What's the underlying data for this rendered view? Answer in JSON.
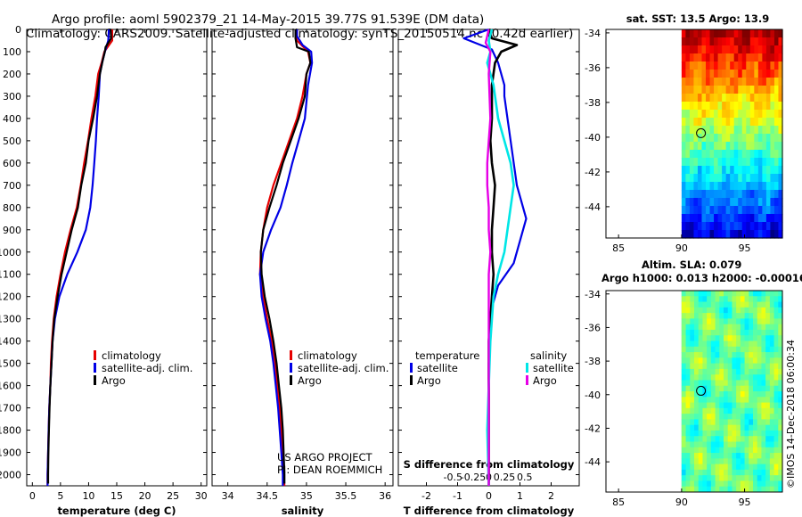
{
  "header": {
    "line1": "Argo profile: aoml 5902379_21 14-May-2015 39.77S 91.539E (DM data)",
    "line2": "Climatology: CARS2009. Satellite-adjusted climatology: synTS_20150514.nc (0.42d earlier)"
  },
  "colors": {
    "climatology": "#e60000",
    "satellite": "#0000e6",
    "argo": "#000000",
    "sat_salinity": "#00e6e6",
    "argo_salinity": "#e600e6"
  },
  "chart_data": [
    {
      "id": "temperature",
      "type": "line",
      "xlabel": "temperature (deg C)",
      "xlim": [
        -1,
        31
      ],
      "ylim": [
        2050,
        0
      ],
      "xticks": [
        "0",
        "5",
        "10",
        "15",
        "20",
        "25",
        "30"
      ],
      "xtick_values": [
        0,
        5,
        10,
        15,
        20,
        25,
        30
      ],
      "yticks": [
        "0",
        "100",
        "200",
        "300",
        "400",
        "500",
        "600",
        "700",
        "800",
        "900",
        "1000",
        "1100",
        "1200",
        "1300",
        "1400",
        "1500",
        "1600",
        "1700",
        "1800",
        "1900",
        "2000"
      ],
      "legend": [
        "climatology",
        "satellite-adj. clim.",
        "Argo"
      ],
      "series": [
        {
          "name": "climatology",
          "points": [
            [
              14.2,
              0
            ],
            [
              14.2,
              50
            ],
            [
              12.8,
              100
            ],
            [
              12.3,
              150
            ],
            [
              11.7,
              200
            ],
            [
              11.2,
              300
            ],
            [
              10.5,
              400
            ],
            [
              9.9,
              500
            ],
            [
              9.2,
              600
            ],
            [
              8.6,
              700
            ],
            [
              7.9,
              800
            ],
            [
              6.8,
              900
            ],
            [
              5.8,
              1000
            ],
            [
              5.0,
              1100
            ],
            [
              4.3,
              1200
            ],
            [
              3.8,
              1300
            ],
            [
              3.5,
              1400
            ],
            [
              3.3,
              1500
            ],
            [
              3.2,
              1600
            ],
            [
              3.0,
              1700
            ],
            [
              2.9,
              1800
            ],
            [
              2.8,
              1900
            ],
            [
              2.7,
              2000
            ],
            [
              2.7,
              2050
            ]
          ]
        },
        {
          "name": "satellite-adj. clim.",
          "points": [
            [
              13.6,
              0
            ],
            [
              13.5,
              50
            ],
            [
              12.9,
              100
            ],
            [
              12.4,
              150
            ],
            [
              12.0,
              200
            ],
            [
              11.8,
              300
            ],
            [
              11.5,
              400
            ],
            [
              11.3,
              500
            ],
            [
              11.0,
              600
            ],
            [
              10.7,
              700
            ],
            [
              10.3,
              800
            ],
            [
              9.5,
              900
            ],
            [
              8.0,
              1000
            ],
            [
              6.2,
              1100
            ],
            [
              4.8,
              1200
            ],
            [
              4.0,
              1300
            ],
            [
              3.6,
              1400
            ],
            [
              3.4,
              1500
            ],
            [
              3.2,
              1600
            ],
            [
              3.0,
              1700
            ],
            [
              2.9,
              1800
            ],
            [
              2.8,
              1900
            ],
            [
              2.7,
              2000
            ],
            [
              2.7,
              2050
            ]
          ]
        },
        {
          "name": "Argo",
          "points": [
            [
              13.9,
              0
            ],
            [
              14.0,
              40
            ],
            [
              13.0,
              80
            ],
            [
              12.9,
              100
            ],
            [
              12.5,
              140
            ],
            [
              12.0,
              200
            ],
            [
              11.5,
              300
            ],
            [
              10.8,
              400
            ],
            [
              10.0,
              500
            ],
            [
              9.5,
              600
            ],
            [
              8.7,
              700
            ],
            [
              8.1,
              800
            ],
            [
              7.0,
              900
            ],
            [
              6.1,
              1000
            ],
            [
              5.2,
              1100
            ],
            [
              4.5,
              1200
            ],
            [
              3.9,
              1300
            ],
            [
              3.6,
              1400
            ],
            [
              3.4,
              1500
            ],
            [
              3.2,
              1600
            ],
            [
              3.05,
              1700
            ],
            [
              2.95,
              1800
            ],
            [
              2.85,
              1900
            ],
            [
              2.8,
              2000
            ],
            [
              2.8,
              2040
            ]
          ]
        }
      ]
    },
    {
      "id": "salinity",
      "type": "line",
      "xlabel": "salinity",
      "xlim": [
        33.8,
        36.1
      ],
      "ylim": [
        2050,
        0
      ],
      "xticks": [
        "34",
        "34.5",
        "35",
        "35.5",
        "36"
      ],
      "xtick_values": [
        34,
        34.5,
        35,
        35.5,
        36
      ],
      "legend": [
        "climatology",
        "satellite-adj. clim.",
        "Argo"
      ],
      "credit": [
        "US ARGO PROJECT",
        "PI: DEAN ROEMMICH"
      ],
      "series": [
        {
          "name": "climatology",
          "points": [
            [
              34.88,
              0
            ],
            [
              34.88,
              50
            ],
            [
              35.02,
              100
            ],
            [
              35.05,
              150
            ],
            [
              35.0,
              200
            ],
            [
              34.95,
              300
            ],
            [
              34.88,
              400
            ],
            [
              34.78,
              500
            ],
            [
              34.68,
              600
            ],
            [
              34.58,
              700
            ],
            [
              34.5,
              800
            ],
            [
              34.45,
              900
            ],
            [
              34.42,
              1000
            ],
            [
              34.41,
              1100
            ],
            [
              34.45,
              1200
            ],
            [
              34.5,
              1300
            ],
            [
              34.56,
              1400
            ],
            [
              34.6,
              1500
            ],
            [
              34.63,
              1600
            ],
            [
              34.66,
              1700
            ],
            [
              34.68,
              1800
            ],
            [
              34.7,
              1900
            ],
            [
              34.71,
              2000
            ],
            [
              34.72,
              2050
            ]
          ]
        },
        {
          "name": "satellite-adj. clim.",
          "points": [
            [
              34.88,
              0
            ],
            [
              34.88,
              30
            ],
            [
              34.95,
              70
            ],
            [
              35.06,
              100
            ],
            [
              35.07,
              150
            ],
            [
              35.02,
              250
            ],
            [
              34.98,
              400
            ],
            [
              34.9,
              500
            ],
            [
              34.82,
              600
            ],
            [
              34.75,
              700
            ],
            [
              34.67,
              800
            ],
            [
              34.55,
              900
            ],
            [
              34.45,
              1000
            ],
            [
              34.41,
              1100
            ],
            [
              34.43,
              1200
            ],
            [
              34.48,
              1300
            ],
            [
              34.54,
              1400
            ],
            [
              34.58,
              1500
            ],
            [
              34.61,
              1600
            ],
            [
              34.64,
              1700
            ],
            [
              34.66,
              1800
            ],
            [
              34.68,
              1900
            ],
            [
              34.7,
              2000
            ],
            [
              34.7,
              2050
            ]
          ]
        },
        {
          "name": "Argo",
          "points": [
            [
              34.86,
              0
            ],
            [
              34.86,
              40
            ],
            [
              34.88,
              80
            ],
            [
              35.03,
              100
            ],
            [
              35.05,
              150
            ],
            [
              35.0,
              200
            ],
            [
              34.98,
              300
            ],
            [
              34.9,
              400
            ],
            [
              34.8,
              500
            ],
            [
              34.7,
              600
            ],
            [
              34.62,
              700
            ],
            [
              34.53,
              800
            ],
            [
              34.45,
              900
            ],
            [
              34.42,
              1000
            ],
            [
              34.43,
              1100
            ],
            [
              34.47,
              1200
            ],
            [
              34.53,
              1300
            ],
            [
              34.58,
              1400
            ],
            [
              34.62,
              1500
            ],
            [
              34.65,
              1600
            ],
            [
              34.68,
              1700
            ],
            [
              34.7,
              1800
            ],
            [
              34.71,
              1900
            ],
            [
              34.72,
              2000
            ],
            [
              34.72,
              2040
            ]
          ]
        }
      ]
    },
    {
      "id": "difference",
      "type": "line",
      "xlabel": "T difference from climatology",
      "x2label": "S difference from climatology",
      "xlim": [
        -2.9,
        2.9
      ],
      "ylim": [
        2050,
        0
      ],
      "xticks": [
        "-2",
        "-1",
        "0",
        "1",
        "2"
      ],
      "xtick_values": [
        -2,
        -1,
        0,
        1,
        2
      ],
      "x2ticks": [
        "-0.5",
        "-0.25",
        "0",
        "0.25",
        "0.5"
      ],
      "x2tick_values": [
        -1.15,
        -0.5,
        0,
        0.5,
        1.15
      ],
      "legend_left_title": "temperature",
      "legend_right_title": "salinity",
      "legend": [
        "satellite",
        "Argo",
        "satellite",
        "Argo"
      ],
      "series": [
        {
          "name": "T satellite",
          "points": [
            [
              0,
              0
            ],
            [
              -0.8,
              40
            ],
            [
              0.1,
              90
            ],
            [
              0.3,
              150
            ],
            [
              0.5,
              250
            ],
            [
              0.5,
              300
            ],
            [
              0.6,
              400
            ],
            [
              0.7,
              500
            ],
            [
              0.8,
              600
            ],
            [
              0.9,
              700
            ],
            [
              1.1,
              800
            ],
            [
              1.2,
              850
            ],
            [
              1.0,
              950
            ],
            [
              0.8,
              1050
            ],
            [
              0.3,
              1150
            ],
            [
              0.1,
              1250
            ],
            [
              0.05,
              1350
            ],
            [
              0,
              1500
            ],
            [
              0,
              2050
            ]
          ]
        },
        {
          "name": "T Argo",
          "points": [
            [
              0,
              0
            ],
            [
              0.1,
              40
            ],
            [
              0.9,
              70
            ],
            [
              0.4,
              100
            ],
            [
              0.2,
              150
            ],
            [
              0.1,
              250
            ],
            [
              0.1,
              400
            ],
            [
              0.05,
              500
            ],
            [
              0.1,
              600
            ],
            [
              0.2,
              700
            ],
            [
              0.15,
              800
            ],
            [
              0.1,
              900
            ],
            [
              0.1,
              1000
            ],
            [
              0.15,
              1100
            ],
            [
              0.1,
              1200
            ],
            [
              0.05,
              1300
            ],
            [
              0,
              1400
            ],
            [
              0,
              2050
            ]
          ]
        },
        {
          "name": "S satellite",
          "points": [
            [
              0.1,
              0
            ],
            [
              0.0,
              50
            ],
            [
              0.05,
              100
            ],
            [
              -0.05,
              150
            ],
            [
              0.15,
              250
            ],
            [
              0.3,
              400
            ],
            [
              0.5,
              500
            ],
            [
              0.7,
              600
            ],
            [
              0.8,
              700
            ],
            [
              0.7,
              800
            ],
            [
              0.6,
              900
            ],
            [
              0.5,
              1000
            ],
            [
              0.3,
              1100
            ],
            [
              0.15,
              1200
            ],
            [
              0.05,
              1400
            ],
            [
              0,
              1600
            ],
            [
              -0.05,
              1800
            ],
            [
              0,
              2050
            ]
          ]
        },
        {
          "name": "S Argo",
          "points": [
            [
              0,
              0
            ],
            [
              -0.1,
              60
            ],
            [
              0.05,
              100
            ],
            [
              0,
              200
            ],
            [
              0.05,
              400
            ],
            [
              0.0,
              500
            ],
            [
              -0.05,
              600
            ],
            [
              -0.05,
              700
            ],
            [
              0.0,
              800
            ],
            [
              0.0,
              900
            ],
            [
              0.05,
              1000
            ],
            [
              0.0,
              1100
            ],
            [
              0.0,
              1200
            ],
            [
              0.0,
              1400
            ],
            [
              0.0,
              1600
            ],
            [
              0.0,
              2050
            ]
          ]
        }
      ]
    },
    {
      "id": "sst_map",
      "type": "heatmap",
      "title": "sat. SST: 13.5 Argo: 13.9",
      "xticks": [
        "85",
        "90",
        "95"
      ],
      "xtick_values": [
        85,
        90,
        95
      ],
      "yticks": [
        "-34",
        "-36",
        "-38",
        "-40",
        "-42",
        "-44"
      ],
      "ytick_values": [
        -34,
        -36,
        -38,
        -40,
        -42,
        -44
      ],
      "xlim": [
        84,
        98
      ],
      "ylim": [
        -45.8,
        -33.8
      ],
      "data_xrange": [
        90,
        98
      ],
      "float_position": [
        91.539,
        -39.77
      ],
      "rows": 26,
      "cols": 25,
      "seed": 7
    },
    {
      "id": "sla_map",
      "type": "heatmap",
      "title_line1": "Altim. SLA: 0.079",
      "title_line2": "Argo h1000: 0.013 h2000: -0.00016",
      "xticks": [
        "85",
        "90",
        "95"
      ],
      "xtick_values": [
        85,
        90,
        95
      ],
      "yticks": [
        "-34",
        "-36",
        "-38",
        "-40",
        "-42",
        "-44"
      ],
      "ytick_values": [
        -34,
        -36,
        -38,
        -40,
        -42,
        -44
      ],
      "xlim": [
        84,
        98
      ],
      "ylim": [
        -45.8,
        -33.8
      ],
      "data_xrange": [
        90,
        98
      ],
      "float_position": [
        91.539,
        -39.77
      ],
      "rows": 12,
      "cols": 8,
      "seed": 3
    }
  ],
  "footer": {
    "timestamp": "©IMOS 14-Dec-2018 06:00:34"
  }
}
